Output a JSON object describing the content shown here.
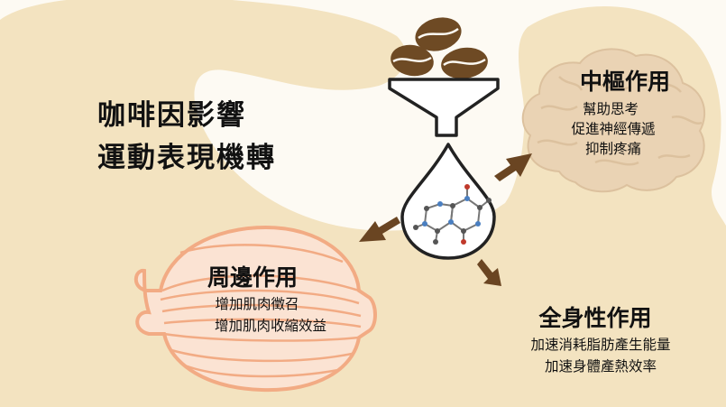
{
  "title": {
    "line1": "咖啡因影響",
    "line2": "運動表現機轉"
  },
  "central": {
    "heading": "中樞作用",
    "items": [
      "幫助思考",
      "促進神經傳遞",
      "抑制疼痛"
    ]
  },
  "peripheral": {
    "heading": "周邊作用",
    "items": [
      "增加肌肉徵召",
      "增加肌肉收縮效益"
    ]
  },
  "systemic": {
    "heading": "全身性作用",
    "items": [
      "加速消耗脂肪產生能量",
      "加速身體產熱效率"
    ]
  },
  "colors": {
    "silhouette": "#f3e3c0",
    "brain": "#ead3b4",
    "muscle": "#f2ab84",
    "bean": "#6e4a24",
    "arrow": "#6a4522",
    "ink": "#111111"
  },
  "icons": [
    "body-silhouette",
    "brain-icon",
    "muscle-icon",
    "coffee-bean-icon",
    "funnel-icon",
    "drop-icon",
    "caffeine-molecule-icon",
    "arrow-icon"
  ]
}
